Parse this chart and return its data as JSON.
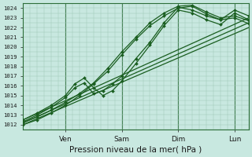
{
  "title": "",
  "xlabel": "Pression niveau de la mer( hPa )",
  "ylabel": "",
  "bg_color": "#c8e8e0",
  "grid_color": "#a0c8b8",
  "line_color": "#1a5e20",
  "ylim": [
    1011.5,
    1024.5
  ],
  "yticks": [
    1012,
    1013,
    1014,
    1015,
    1016,
    1017,
    1018,
    1019,
    1020,
    1021,
    1022,
    1023,
    1024
  ],
  "xlim": [
    0,
    96
  ],
  "xtick_positions": [
    18,
    42,
    66,
    90
  ],
  "xtick_labels": [
    "Ven",
    "Sam",
    "Dim",
    "Lun"
  ],
  "lines": [
    {
      "x": [
        0,
        96
      ],
      "y": [
        1012.0,
        1022.0
      ],
      "marker": null,
      "markersize": 0,
      "linewidth": 0.9,
      "zorder": 2
    },
    {
      "x": [
        0,
        96
      ],
      "y": [
        1012.2,
        1022.5
      ],
      "marker": null,
      "markersize": 0,
      "linewidth": 0.9,
      "zorder": 2
    },
    {
      "x": [
        0,
        96
      ],
      "y": [
        1012.5,
        1023.0
      ],
      "marker": null,
      "markersize": 0,
      "linewidth": 0.9,
      "zorder": 2
    },
    {
      "x": [
        0,
        6,
        12,
        18,
        24,
        30,
        36,
        42,
        48,
        54,
        60,
        66,
        72,
        78,
        84,
        90,
        96
      ],
      "y": [
        1012.2,
        1012.8,
        1013.5,
        1014.3,
        1015.2,
        1016.3,
        1017.8,
        1019.5,
        1021.0,
        1022.5,
        1023.5,
        1024.2,
        1024.3,
        1023.6,
        1023.0,
        1023.2,
        1022.7
      ],
      "marker": "D",
      "markersize": 2.0,
      "linewidth": 0.9,
      "zorder": 3
    },
    {
      "x": [
        0,
        6,
        12,
        18,
        24,
        30,
        36,
        42,
        48,
        54,
        60,
        66,
        72,
        78,
        84,
        90,
        96
      ],
      "y": [
        1012.0,
        1012.5,
        1013.2,
        1014.0,
        1015.0,
        1016.2,
        1017.5,
        1019.2,
        1020.8,
        1022.2,
        1023.2,
        1024.0,
        1024.2,
        1023.4,
        1022.8,
        1023.0,
        1022.4
      ],
      "marker": "D",
      "markersize": 2.0,
      "linewidth": 0.9,
      "zorder": 3
    },
    {
      "x": [
        0,
        6,
        12,
        18,
        22,
        26,
        30,
        34,
        38,
        42,
        48,
        54,
        60,
        66,
        72,
        78,
        84,
        90,
        96
      ],
      "y": [
        1012.3,
        1013.0,
        1013.8,
        1014.8,
        1015.8,
        1016.3,
        1015.2,
        1015.5,
        1016.2,
        1017.0,
        1018.8,
        1020.5,
        1022.5,
        1024.1,
        1023.8,
        1023.2,
        1022.8,
        1023.8,
        1023.2
      ],
      "marker": "D",
      "markersize": 2.0,
      "linewidth": 0.9,
      "zorder": 3
    },
    {
      "x": [
        0,
        6,
        12,
        18,
        22,
        26,
        30,
        34,
        38,
        42,
        48,
        54,
        60,
        66,
        72,
        78,
        84,
        90,
        96
      ],
      "y": [
        1012.5,
        1013.2,
        1014.0,
        1015.0,
        1016.2,
        1016.8,
        1015.8,
        1015.0,
        1015.5,
        1016.5,
        1018.3,
        1020.2,
        1022.2,
        1023.8,
        1023.5,
        1022.8,
        1022.3,
        1023.5,
        1022.8
      ],
      "marker": "D",
      "markersize": 2.0,
      "linewidth": 0.9,
      "zorder": 3
    }
  ],
  "vline_positions": [
    18,
    42,
    66,
    90
  ],
  "vline_color": "#2d6e3a",
  "vline_linewidth": 0.8
}
